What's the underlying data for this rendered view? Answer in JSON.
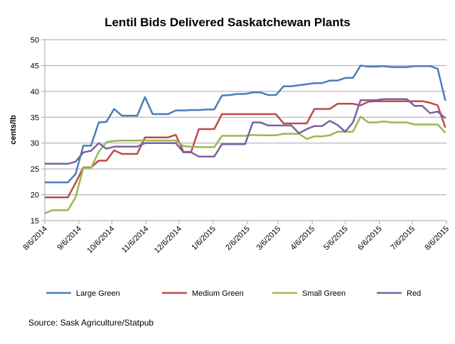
{
  "chart_data": {
    "type": "line",
    "title": "Lentil Bids Delivered Saskatchewan Plants",
    "xlabel": "",
    "ylabel": "cents/lb",
    "ylim": [
      15,
      50
    ],
    "yticks": [
      15,
      20,
      25,
      30,
      35,
      40,
      45,
      50
    ],
    "x_unit": "weeks since 8/6/2014",
    "x": [
      0,
      1,
      2,
      3,
      4,
      5,
      6,
      7,
      8,
      9,
      10,
      11,
      12,
      13,
      14,
      15,
      16,
      17,
      18,
      19,
      20,
      21,
      22,
      23,
      24,
      25,
      26,
      27,
      28,
      29,
      30,
      31,
      32,
      33,
      34,
      35,
      36,
      37,
      38,
      39,
      40,
      41,
      42,
      43,
      44,
      45,
      46,
      47,
      48,
      49,
      50,
      51,
      52
    ],
    "xticks": [
      {
        "label": "8/6/2014",
        "week": 0
      },
      {
        "label": "9/6/2014",
        "week": 4.43
      },
      {
        "label": "10/6/2014",
        "week": 8.71
      },
      {
        "label": "11/6/2014",
        "week": 13.14
      },
      {
        "label": "12/6/2014",
        "week": 17.43
      },
      {
        "label": "1/6/2015",
        "week": 21.86
      },
      {
        "label": "2/6/2015",
        "week": 26.29
      },
      {
        "label": "3/6/2015",
        "week": 30.29
      },
      {
        "label": "4/6/2015",
        "week": 34.71
      },
      {
        "label": "5/6/2015",
        "week": 39.0
      },
      {
        "label": "6/6/2015",
        "week": 43.43
      },
      {
        "label": "7/6/2015",
        "week": 47.71
      },
      {
        "label": "8/6/2015",
        "week": 52.14
      }
    ],
    "grid": true,
    "legend_position": "bottom",
    "series": [
      {
        "name": "Large Green",
        "color": "#4a7ebb",
        "values": [
          22.4,
          22.4,
          22.4,
          22.4,
          24.0,
          29.5,
          29.5,
          34.0,
          34.1,
          36.6,
          35.3,
          35.3,
          35.3,
          38.9,
          35.6,
          35.6,
          35.6,
          36.3,
          36.3,
          36.4,
          36.4,
          36.5,
          36.5,
          39.2,
          39.3,
          39.5,
          39.5,
          39.8,
          39.8,
          39.3,
          39.3,
          41.0,
          41.0,
          41.2,
          41.4,
          41.6,
          41.6,
          42.1,
          42.1,
          42.6,
          42.6,
          45.0,
          44.8,
          44.8,
          44.9,
          44.7,
          44.7,
          44.7,
          44.9,
          44.9,
          44.9,
          44.4,
          38.2
        ]
      },
      {
        "name": "Medium Green",
        "color": "#be4b48",
        "values": [
          19.5,
          19.5,
          19.5,
          19.5,
          22.3,
          25.3,
          25.3,
          26.6,
          26.6,
          28.6,
          27.9,
          27.9,
          27.9,
          31.1,
          31.1,
          31.1,
          31.1,
          31.6,
          28.3,
          28.3,
          32.7,
          32.7,
          32.7,
          35.6,
          35.6,
          35.6,
          35.6,
          35.6,
          35.6,
          35.6,
          35.6,
          33.8,
          33.8,
          33.8,
          33.8,
          36.6,
          36.6,
          36.6,
          37.6,
          37.6,
          37.6,
          37.3,
          38.0,
          38.1,
          38.1,
          38.1,
          38.1,
          38.1,
          38.1,
          38.1,
          37.8,
          37.3,
          33.0
        ]
      },
      {
        "name": "Small Green",
        "color": "#98b954",
        "values": [
          16.4,
          17.0,
          17.0,
          17.0,
          19.5,
          25.2,
          25.2,
          28.3,
          30.2,
          30.4,
          30.5,
          30.5,
          30.5,
          30.5,
          30.5,
          30.5,
          30.5,
          30.5,
          29.4,
          29.3,
          29.2,
          29.2,
          29.2,
          31.4,
          31.4,
          31.4,
          31.4,
          31.6,
          31.5,
          31.5,
          31.5,
          31.8,
          31.8,
          31.8,
          30.8,
          31.3,
          31.3,
          31.5,
          32.2,
          32.2,
          32.2,
          35.1,
          34.0,
          34.0,
          34.2,
          34.0,
          34.0,
          34.0,
          33.6,
          33.6,
          33.6,
          33.6,
          32.0
        ]
      },
      {
        "name": "Red",
        "color": "#7d60a0",
        "values": [
          26.0,
          26.0,
          26.0,
          26.0,
          26.4,
          28.2,
          28.5,
          30.0,
          28.9,
          29.3,
          29.3,
          29.3,
          29.3,
          30.0,
          30.0,
          30.0,
          30.0,
          30.0,
          28.2,
          28.2,
          27.4,
          27.4,
          27.4,
          29.8,
          29.8,
          29.8,
          29.8,
          34.0,
          34.0,
          33.4,
          33.4,
          33.4,
          33.4,
          31.9,
          32.7,
          33.3,
          33.3,
          34.3,
          33.5,
          32.2,
          34.0,
          38.3,
          38.3,
          38.3,
          38.5,
          38.5,
          38.5,
          38.5,
          37.2,
          37.2,
          35.8,
          36.1,
          34.8
        ]
      }
    ],
    "source": "Source: Sask Agriculture/Statpub"
  }
}
